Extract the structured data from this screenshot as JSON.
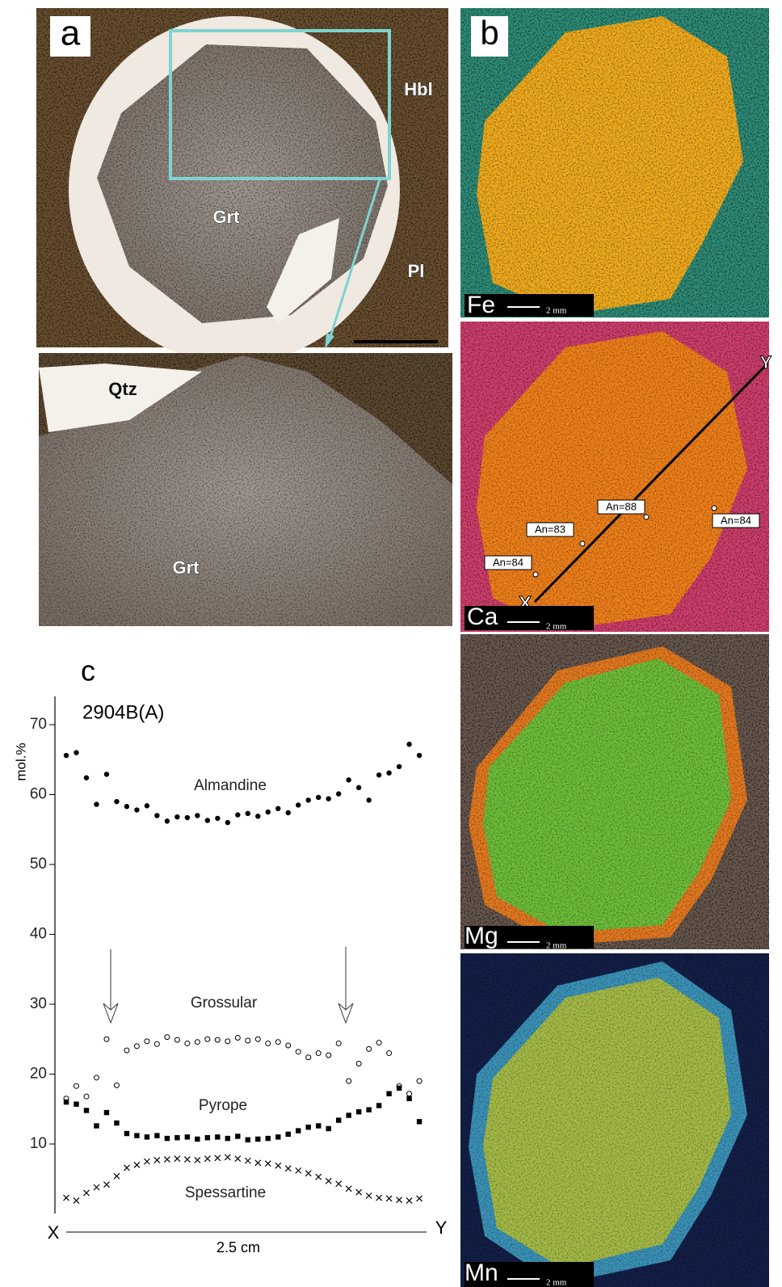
{
  "panel_a": {
    "label": "a",
    "minerals": [
      "Hbl",
      "Grt",
      "Pl",
      "Qtz",
      "Grt"
    ]
  },
  "panel_b": {
    "label": "b",
    "maps": [
      "Fe",
      "Ca",
      "Mg",
      "Mn"
    ],
    "scale": "2 mm",
    "profile_ends": [
      "X",
      "Y"
    ],
    "plagioclase": [
      "An=88",
      "An=83",
      "An=84",
      "An=84"
    ]
  },
  "chart_data": {
    "type": "scatter",
    "panel_label": "c",
    "sample": "2904B(A)",
    "y_label": "mol.%",
    "x_label": "2.5 cm",
    "x_ends": [
      "X",
      "Y"
    ],
    "xlim": [
      0,
      2.5
    ],
    "ylim": [
      0,
      74
    ],
    "yticks": [
      10,
      20,
      30,
      40,
      50,
      60,
      70
    ],
    "x": [
      0,
      0.07,
      0.14,
      0.21,
      0.28,
      0.35,
      0.42,
      0.49,
      0.56,
      0.63,
      0.7,
      0.77,
      0.84,
      0.91,
      0.98,
      1.05,
      1.12,
      1.19,
      1.26,
      1.33,
      1.4,
      1.47,
      1.54,
      1.61,
      1.68,
      1.75,
      1.82,
      1.89,
      1.96,
      2.03,
      2.1,
      2.17,
      2.24,
      2.31,
      2.38,
      2.45
    ],
    "series": [
      {
        "name": "Almandine",
        "color": "#000000",
        "marker": "filled-circle",
        "values": [
          65.6,
          66.0,
          62.4,
          58.6,
          62.9,
          59.0,
          58.3,
          57.8,
          58.4,
          57.0,
          56.2,
          56.8,
          56.7,
          57.0,
          56.3,
          56.6,
          56.0,
          57.1,
          57.3,
          56.9,
          57.5,
          58.0,
          57.4,
          58.5,
          59.2,
          59.6,
          59.4,
          60.1,
          62.1,
          61.0,
          59.2,
          62.8,
          63.1,
          64.0,
          67.2,
          65.6
        ]
      },
      {
        "name": "Grossular",
        "color": "#000000",
        "marker": "open-circle",
        "values": [
          16.5,
          18.3,
          16.8,
          19.5,
          25.0,
          18.4,
          23.4,
          24.0,
          24.7,
          24.3,
          25.3,
          24.9,
          24.4,
          24.6,
          25.0,
          24.9,
          24.7,
          25.2,
          24.8,
          25.0,
          24.4,
          24.6,
          24.1,
          23.2,
          22.4,
          23.0,
          22.7,
          24.4,
          19.0,
          21.5,
          23.6,
          24.5,
          23.0,
          18.3,
          17.2,
          19.0
        ]
      },
      {
        "name": "Pyrope",
        "color": "#000000",
        "marker": "square",
        "values": [
          16.0,
          15.7,
          14.8,
          12.6,
          14.5,
          13.0,
          11.5,
          11.2,
          11.0,
          11.2,
          10.8,
          10.9,
          11.0,
          10.7,
          10.9,
          11.0,
          10.8,
          11.1,
          10.6,
          10.7,
          10.8,
          11.0,
          11.4,
          11.9,
          12.4,
          12.6,
          12.2,
          13.4,
          14.1,
          14.6,
          14.9,
          15.5,
          17.2,
          18.0,
          16.5,
          13.2
        ]
      },
      {
        "name": "Spessartine",
        "color": "#000000",
        "marker": "cross",
        "values": [
          2.3,
          1.9,
          3.0,
          3.8,
          4.2,
          5.4,
          6.6,
          7.0,
          7.5,
          7.7,
          7.8,
          7.9,
          7.8,
          7.7,
          7.9,
          8.0,
          8.1,
          7.9,
          7.6,
          7.3,
          7.2,
          6.9,
          6.5,
          6.2,
          5.8,
          5.3,
          4.7,
          4.3,
          3.6,
          3.1,
          2.6,
          2.3,
          2.2,
          2.0,
          1.9,
          2.2
        ]
      }
    ]
  }
}
